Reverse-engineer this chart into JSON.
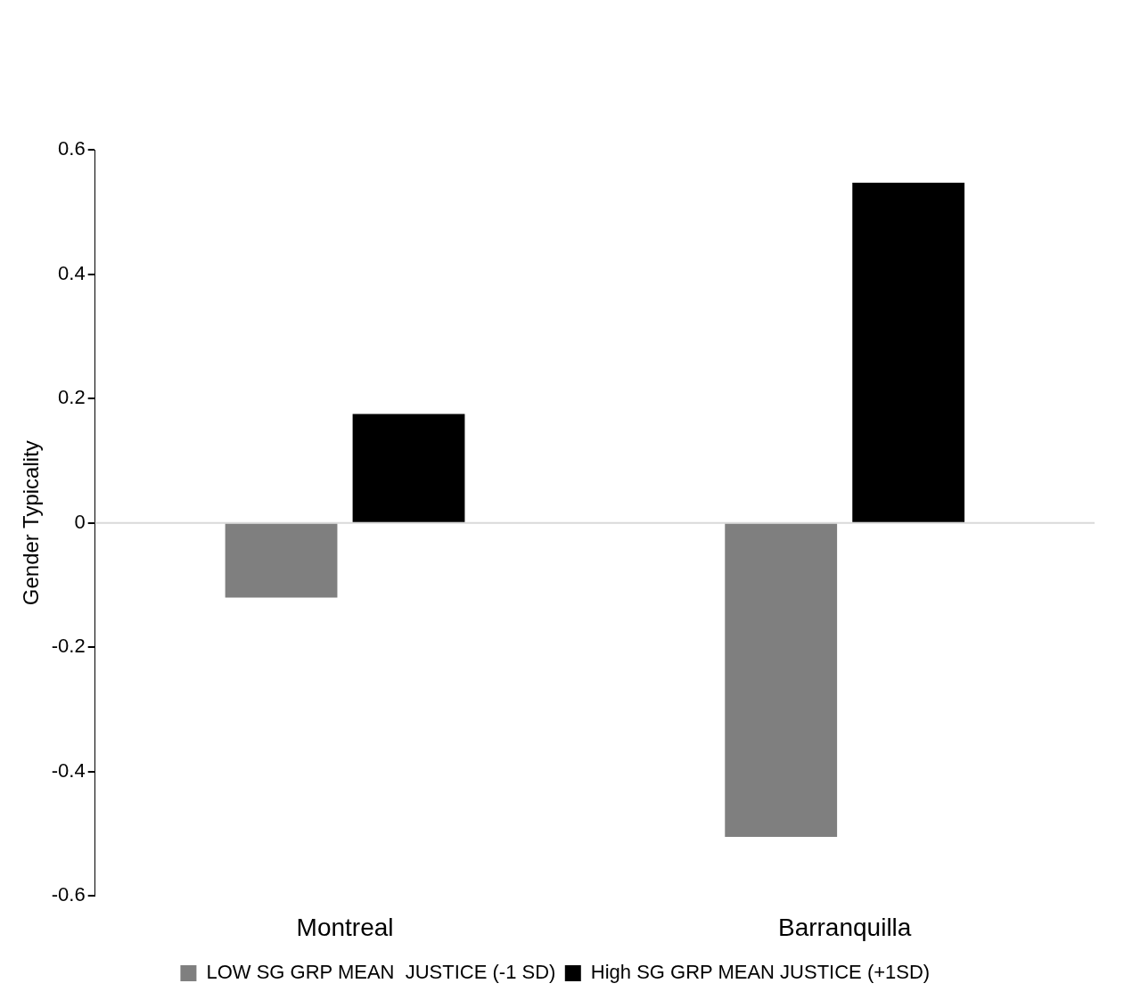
{
  "chart_data": {
    "type": "bar",
    "ylabel": "Gender Typicality",
    "categories": [
      "Montreal",
      "Barranquilla"
    ],
    "series": [
      {
        "name": "LOW SG GRP MEAN  JUSTICE (-1 SD)",
        "color": "#7f7f7f",
        "values": [
          -0.12,
          -0.505
        ]
      },
      {
        "name": "High SG GRP MEAN JUSTICE (+1SD)",
        "color": "#000000",
        "values": [
          0.175,
          0.547
        ]
      }
    ],
    "ylim": [
      -0.6,
      0.6
    ],
    "yticks": [
      -0.6,
      -0.4,
      -0.2,
      0,
      0.2,
      0.4,
      0.6
    ],
    "ref_lines": [
      {
        "axis": "y",
        "value": 0,
        "color": "#d9d9d9"
      }
    ],
    "grid": false,
    "legend": "bottom"
  }
}
